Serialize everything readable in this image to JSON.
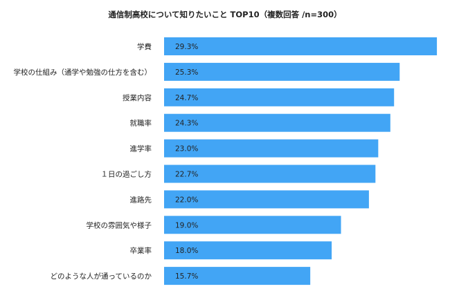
{
  "chart_data": {
    "type": "bar",
    "orientation": "horizontal",
    "title": "通信制高校について知りたいこと TOP10（複数回答 /n=300）",
    "categories": [
      "学費",
      "学校の仕組み（通学や勉強の仕方を含む）",
      "授業内容",
      "就職率",
      "進学率",
      "１日の過ごし方",
      "進路先",
      "学校の雰囲気や様子",
      "卒業率",
      "どのような人が通っているのか"
    ],
    "values": [
      29.3,
      25.3,
      24.7,
      24.3,
      23.0,
      22.7,
      22.0,
      19.0,
      18.0,
      15.7
    ],
    "value_labels": [
      "29.3%",
      "25.3%",
      "24.7%",
      "24.3%",
      "23.0%",
      "22.7%",
      "22.0%",
      "19.0%",
      "18.0%",
      "15.7%"
    ],
    "xlim": [
      0,
      30
    ],
    "grid": false,
    "bar_color": "#42A5F5"
  }
}
